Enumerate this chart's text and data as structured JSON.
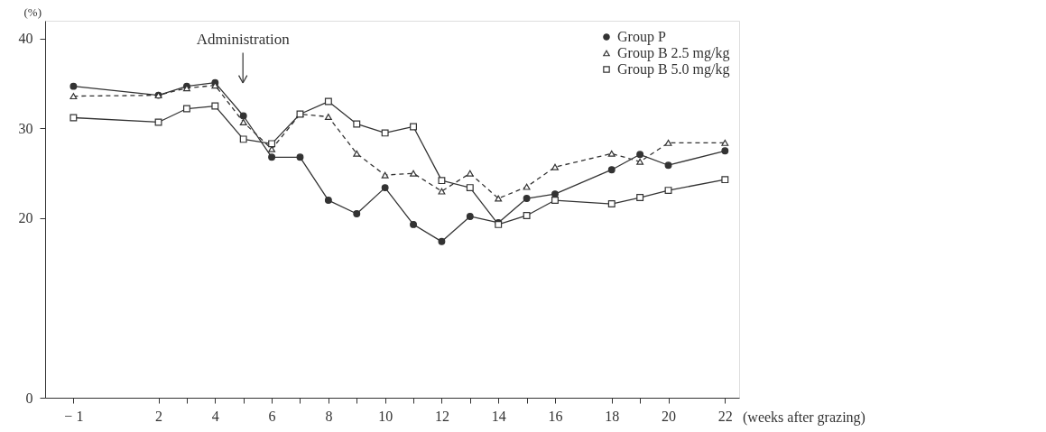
{
  "chart_data": {
    "type": "line",
    "xlabel": "(weeks after grazing)",
    "ylabel": "(%)",
    "annotations": [
      "Administration"
    ],
    "x": [
      -1,
      2,
      3,
      4,
      5,
      6,
      7,
      8,
      9,
      10,
      11,
      12,
      13,
      14,
      15,
      16,
      18,
      19,
      20,
      22
    ],
    "xlim": [
      -2,
      22.5
    ],
    "xticks": [
      -1,
      2,
      {
        "value": 3,
        "label": null
      },
      4,
      {
        "value": 5,
        "label": null
      },
      6,
      {
        "value": 7,
        "label": null
      },
      8,
      {
        "value": 9,
        "label": null
      },
      10,
      {
        "value": 11,
        "label": null
      },
      12,
      {
        "value": 13,
        "label": null
      },
      14,
      {
        "value": 15,
        "label": null
      },
      16,
      18,
      {
        "value": 19,
        "label": null
      },
      20,
      22
    ],
    "ylim": [
      0,
      42
    ],
    "yticks": [
      0,
      20,
      30,
      40
    ],
    "grid": false,
    "legend": "top right",
    "series": [
      {
        "name": "Group P",
        "color": "#333333",
        "marker": "circle",
        "line_style": "solid",
        "values": [
          34.7,
          33.7,
          34.7,
          35.1,
          31.4,
          26.8,
          26.8,
          22.0,
          20.5,
          23.4,
          19.3,
          17.4,
          20.2,
          19.5,
          22.2,
          22.7,
          25.4,
          27.1,
          25.9,
          27.5
        ]
      },
      {
        "name": "Group B 2.5 mg/kg",
        "color": "#333333",
        "marker": "triangle",
        "line_style": "dashed",
        "values": [
          33.6,
          33.7,
          34.5,
          34.8,
          30.7,
          27.7,
          31.6,
          31.3,
          27.2,
          24.8,
          25.0,
          23.0,
          25.0,
          22.2,
          23.5,
          25.7,
          27.2,
          26.3,
          28.4,
          28.4
        ]
      },
      {
        "name": "Group B 5.0 mg/kg",
        "color": "#333333",
        "marker": "square",
        "line_style": "solid",
        "values": [
          31.2,
          30.7,
          32.2,
          32.5,
          28.8,
          28.3,
          31.6,
          33.0,
          30.5,
          29.5,
          30.2,
          24.2,
          23.4,
          19.3,
          20.3,
          22.0,
          21.6,
          22.3,
          23.1,
          24.3
        ]
      }
    ]
  }
}
